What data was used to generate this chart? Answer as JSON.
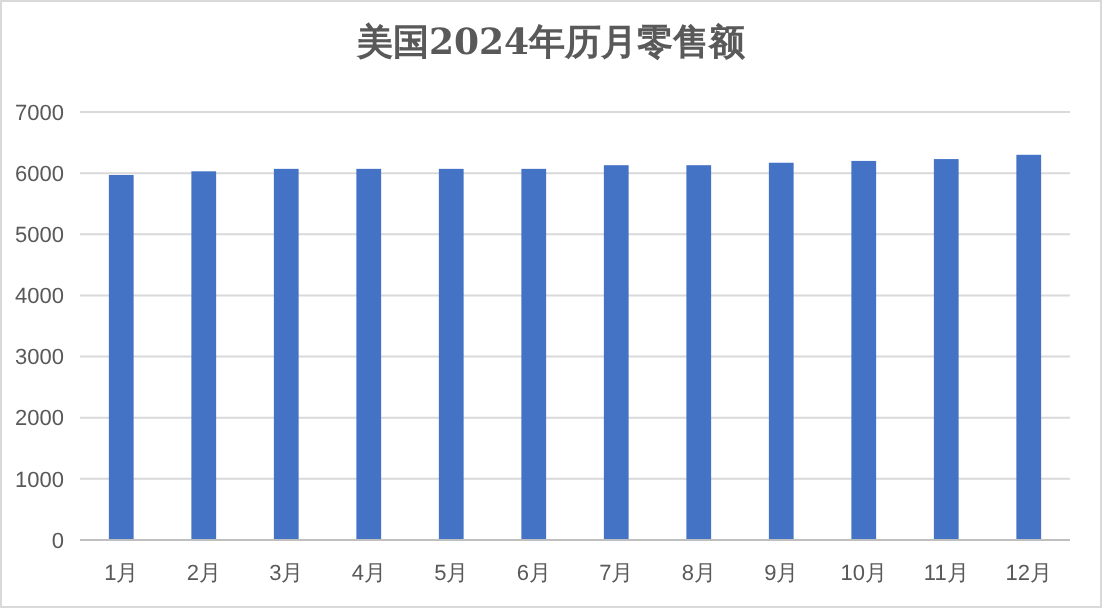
{
  "chart_data": {
    "type": "bar",
    "title": "美国2024年历月零售额",
    "categories": [
      "1月",
      "2月",
      "3月",
      "4月",
      "5月",
      "6月",
      "7月",
      "8月",
      "9月",
      "10月",
      "11月",
      "12月"
    ],
    "values": [
      5970,
      6030,
      6070,
      6070,
      6070,
      6070,
      6130,
      6130,
      6170,
      6200,
      6230,
      6300
    ],
    "color": "#4472c4",
    "ylim": [
      0,
      7000
    ],
    "yticks": [
      0,
      1000,
      2000,
      3000,
      4000,
      5000,
      6000,
      7000
    ],
    "grid": "y"
  }
}
